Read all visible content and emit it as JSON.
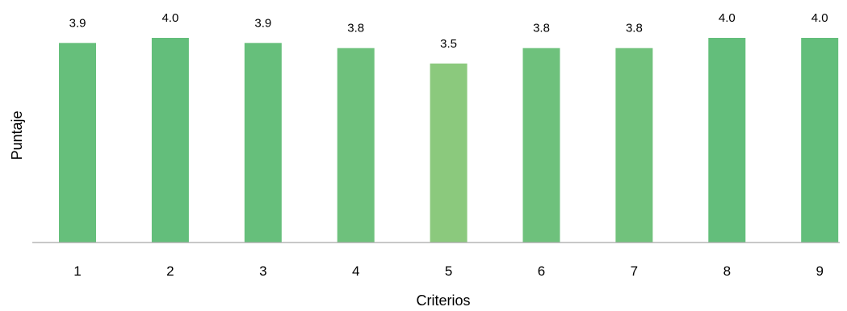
{
  "chart_data": {
    "type": "bar",
    "title": "",
    "xlabel": "Criterios",
    "ylabel": "Puntaje",
    "categories": [
      "1",
      "2",
      "3",
      "4",
      "5",
      "6",
      "7",
      "8",
      "9"
    ],
    "values": [
      3.9,
      4.0,
      3.9,
      3.8,
      3.5,
      3.8,
      3.8,
      4.0,
      4.0
    ],
    "value_labels": [
      "3.9",
      "4.0",
      "3.9",
      "3.8",
      "3.5",
      "3.8",
      "3.8",
      "4.0",
      "4.0"
    ],
    "bar_colors": [
      "#66bf7b",
      "#63be7b",
      "#66bf7b",
      "#6ec17c",
      "#8bc97d",
      "#6ec17c",
      "#71c27c",
      "#63be7b",
      "#63be7b"
    ],
    "ylim": [
      0,
      4.0
    ],
    "grid": false,
    "legend": "none"
  },
  "colors": {
    "axis_line": "#a6a6a6",
    "text": "#000000"
  }
}
